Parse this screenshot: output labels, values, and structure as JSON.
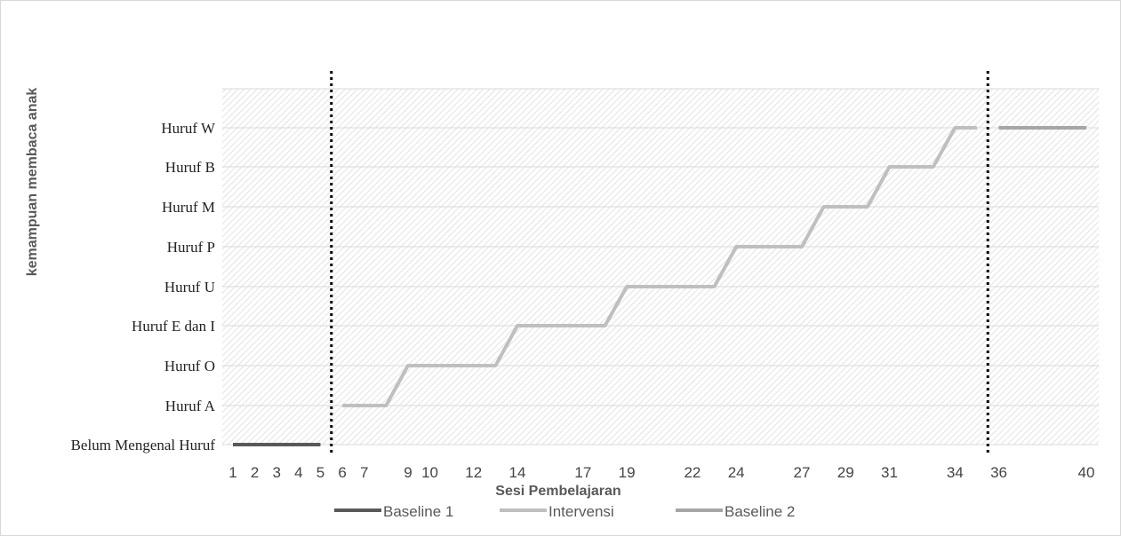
{
  "chart_data": {
    "type": "line",
    "title": "",
    "xlabel": "Sesi Pembelajaran",
    "ylabel": "kemampuan membaca anak",
    "x_tick_labels": [
      1,
      2,
      3,
      4,
      5,
      6,
      7,
      9,
      10,
      12,
      14,
      17,
      19,
      22,
      24,
      27,
      29,
      31,
      34,
      36,
      40
    ],
    "y_categories": [
      "Belum Mengenal Huruf",
      "Huruf A",
      "Huruf O",
      "Huruf E dan I",
      "Huruf U",
      "Huruf P",
      "Huruf M",
      "Huruf  B",
      "Huruf W"
    ],
    "xlim": [
      1,
      40
    ],
    "ylim": [
      0,
      9
    ],
    "grid": true,
    "phase_change_after_sessions": [
      5.5,
      35.5
    ],
    "legend_position": "bottom",
    "series": [
      {
        "name": "Baseline 1",
        "color": "#595959",
        "x": [
          1,
          2,
          3,
          4,
          5
        ],
        "y": [
          0,
          0,
          0,
          0,
          0
        ]
      },
      {
        "name": "Intervensi",
        "color": "#bfbfbf",
        "x": [
          6,
          7,
          8,
          9,
          10,
          11,
          12,
          13,
          14,
          15,
          16,
          17,
          18,
          19,
          20,
          21,
          22,
          23,
          24,
          25,
          26,
          27,
          28,
          29,
          30,
          31,
          32,
          33,
          34,
          35
        ],
        "y": [
          1,
          1,
          1,
          2,
          2,
          2,
          2,
          2,
          3,
          3,
          3,
          3,
          3,
          4,
          4,
          4,
          4,
          4,
          5,
          5,
          5,
          5,
          6,
          6,
          6,
          7,
          7,
          7,
          8,
          8
        ]
      },
      {
        "name": "Baseline 2",
        "color": "#a6a6a6",
        "x": [
          36,
          37,
          38,
          39,
          40
        ],
        "y": [
          8,
          8,
          8,
          8,
          8
        ]
      }
    ]
  }
}
